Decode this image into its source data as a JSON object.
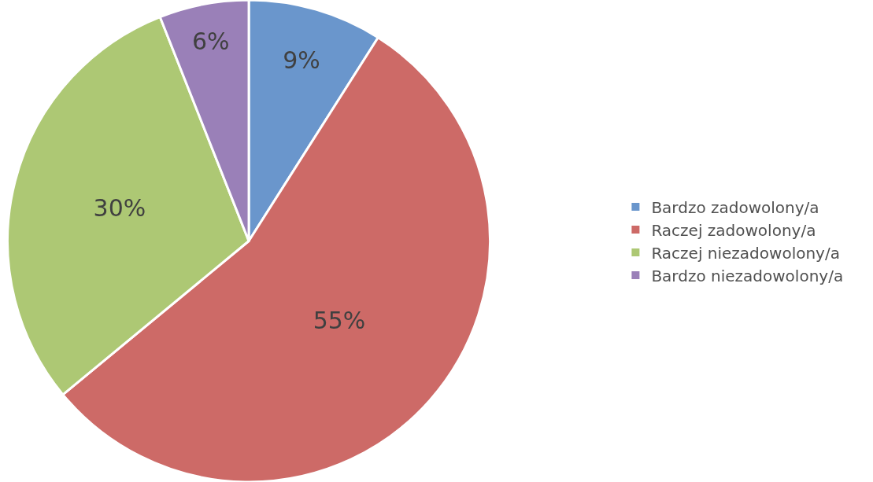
{
  "chart_data": {
    "type": "pie",
    "categories": [
      "Bardzo zadowolony/a",
      "Raczej zadowolony/a",
      "Raczej niezadowolony/a",
      "Bardzo niezadowolony/a"
    ],
    "values": [
      9,
      55,
      30,
      6
    ],
    "value_labels": [
      "9%",
      "55%",
      "30%",
      "6%"
    ],
    "colors": [
      "#6a96cc",
      "#cd6a67",
      "#adc874",
      "#9a80b8"
    ],
    "legend": "right"
  }
}
